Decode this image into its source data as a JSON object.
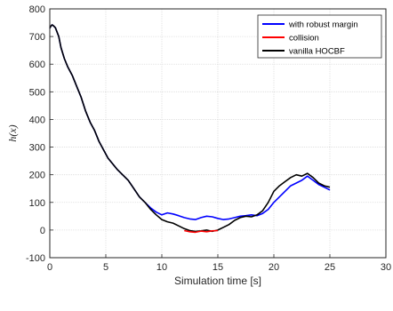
{
  "chart_data": {
    "type": "line",
    "xlabel": "Simulation time [s]",
    "ylabel_prefix": "h",
    "ylabel_paren": "(x)",
    "xlim": [
      0,
      30
    ],
    "ylim": [
      -100,
      800
    ],
    "xticks": [
      0,
      5,
      10,
      15,
      20,
      25,
      30
    ],
    "yticks": [
      -100,
      0,
      100,
      200,
      300,
      400,
      500,
      600,
      700,
      800
    ],
    "grid": true,
    "legend_position": "top-right",
    "series": [
      {
        "name": "with robust margin",
        "color": "#0000ff",
        "x": [
          0.0,
          0.1,
          0.2,
          0.3,
          0.5,
          0.8,
          1.0,
          1.3,
          1.6,
          2.0,
          2.4,
          2.8,
          3.2,
          3.6,
          4.0,
          4.4,
          4.8,
          5.2,
          5.6,
          6.0,
          6.5,
          7.0,
          7.5,
          8.0,
          8.5,
          9.0,
          9.5,
          10.0,
          10.5,
          11.0,
          11.5,
          12.0,
          12.5,
          13.0,
          13.5,
          14.0,
          14.5,
          15.0,
          15.5,
          16.0,
          16.5,
          17.0,
          17.5,
          18.0,
          18.5,
          19.0,
          19.5,
          20.0,
          20.5,
          21.0,
          21.5,
          22.0,
          22.5,
          23.0,
          23.5,
          24.0,
          24.5,
          25.0
        ],
        "y": [
          730,
          738,
          742,
          740,
          732,
          700,
          660,
          620,
          590,
          560,
          520,
          480,
          430,
          390,
          360,
          320,
          290,
          260,
          240,
          220,
          200,
          180,
          150,
          120,
          100,
          80,
          65,
          55,
          62,
          58,
          52,
          45,
          40,
          38,
          45,
          50,
          48,
          42,
          38,
          40,
          45,
          50,
          52,
          55,
          52,
          60,
          75,
          100,
          120,
          140,
          160,
          170,
          180,
          195,
          180,
          165,
          155,
          145
        ]
      },
      {
        "name": "collision",
        "color": "#ff0000",
        "x": [
          12.0,
          12.5,
          13.0,
          13.5,
          14.0,
          14.5,
          15.0
        ],
        "y": [
          -2,
          -6,
          -8,
          -4,
          -6,
          -3,
          -2
        ]
      },
      {
        "name": "vanilla HOCBF",
        "color": "#000000",
        "x": [
          0.0,
          0.1,
          0.2,
          0.3,
          0.5,
          0.8,
          1.0,
          1.3,
          1.6,
          2.0,
          2.4,
          2.8,
          3.2,
          3.6,
          4.0,
          4.4,
          4.8,
          5.2,
          5.6,
          6.0,
          6.5,
          7.0,
          7.5,
          8.0,
          8.5,
          9.0,
          9.5,
          10.0,
          10.5,
          11.0,
          11.5,
          12.0,
          12.5,
          13.0,
          13.5,
          14.0,
          14.5,
          15.0,
          15.5,
          16.0,
          16.5,
          17.0,
          17.5,
          18.0,
          18.5,
          19.0,
          19.5,
          20.0,
          20.5,
          21.0,
          21.5,
          22.0,
          22.5,
          23.0,
          23.5,
          24.0,
          24.5,
          25.0
        ],
        "y": [
          730,
          738,
          742,
          740,
          732,
          700,
          660,
          620,
          590,
          560,
          520,
          480,
          430,
          390,
          360,
          320,
          290,
          260,
          240,
          220,
          200,
          180,
          150,
          120,
          100,
          75,
          55,
          38,
          30,
          25,
          15,
          5,
          -2,
          -5,
          -3,
          0,
          -5,
          0,
          10,
          20,
          35,
          45,
          50,
          48,
          55,
          70,
          100,
          140,
          160,
          175,
          190,
          200,
          195,
          205,
          190,
          170,
          160,
          155
        ]
      }
    ]
  }
}
